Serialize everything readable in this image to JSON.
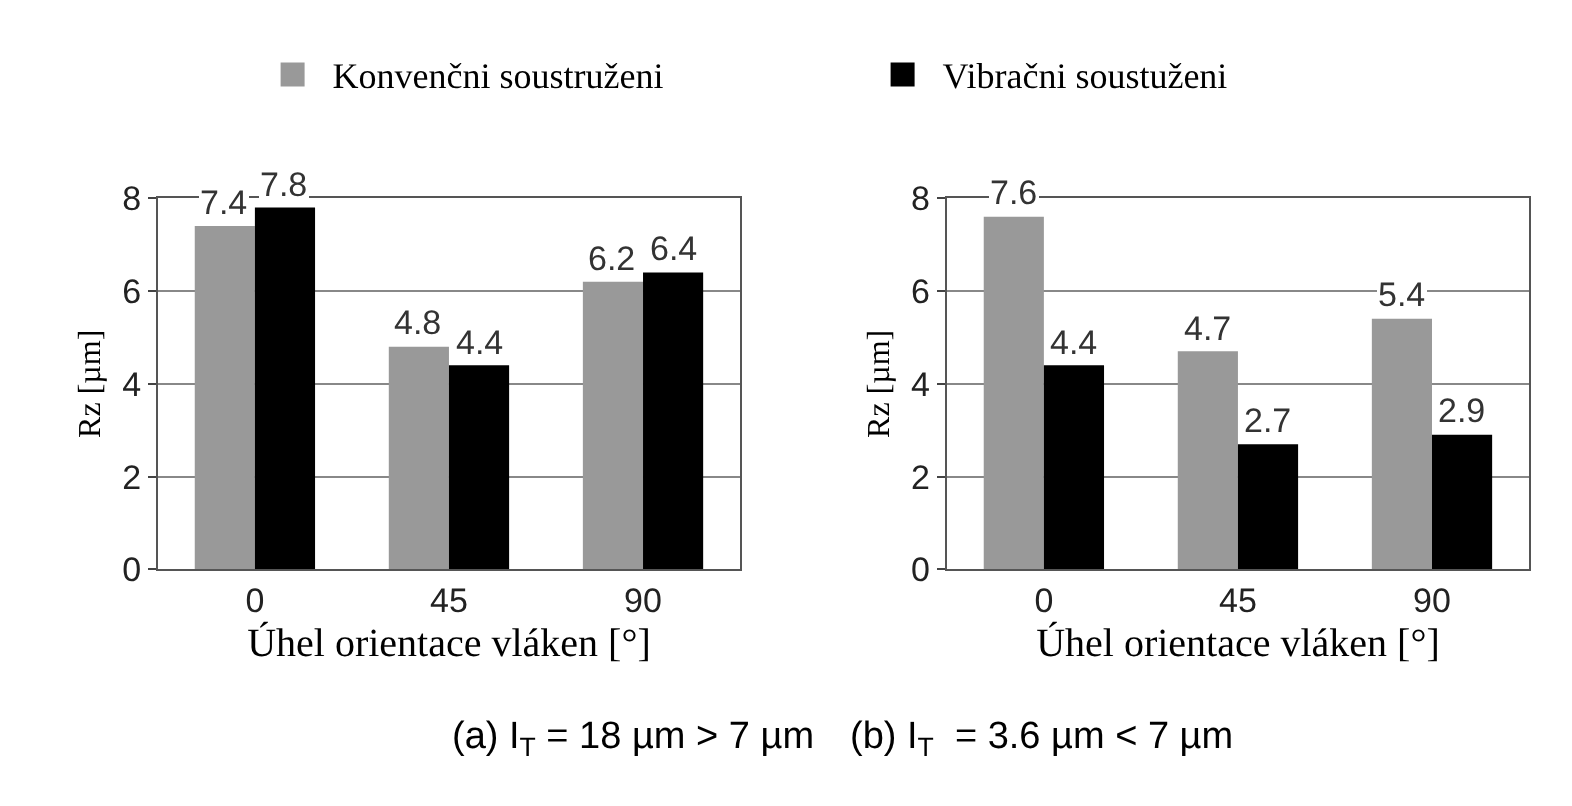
{
  "chart_data": [
    {
      "type": "bar",
      "categories": [
        "0",
        "45",
        "90"
      ],
      "xlabel": "Úhel orientace vláken [°]",
      "ylabel": "Rz [µm]",
      "annotations": [
        "(a) I$_{T}$ = 18 µm > 7 µm"
      ],
      "ylim": [
        0,
        8
      ],
      "yticks": [
        0,
        2,
        4,
        6,
        8
      ],
      "grid": "y",
      "legend": "top",
      "data_labels": true,
      "series": [
        {
          "name": "Konvenčni soustruženi",
          "color": "#999999",
          "values": [
            7.4,
            4.8,
            6.2
          ]
        },
        {
          "name": "Vibračni soustuženi",
          "color": "#000000",
          "values": [
            7.8,
            4.4,
            6.4
          ]
        }
      ]
    },
    {
      "type": "bar",
      "categories": [
        "0",
        "45",
        "90"
      ],
      "xlabel": "Úhel orientace vláken [°]",
      "ylabel": "Rz [µm]",
      "annotations": [
        "(b) I$_{T}$  = 3.6 µm < 7 µm"
      ],
      "ylim": [
        0,
        8
      ],
      "yticks": [
        0,
        2,
        4,
        6,
        8
      ],
      "grid": "y",
      "data_labels": true,
      "series": [
        {
          "color": "#999999",
          "values": [
            7.6,
            4.7,
            5.4
          ]
        },
        {
          "color": "#000000",
          "values": [
            4.4,
            2.7,
            2.9
          ]
        }
      ]
    }
  ]
}
